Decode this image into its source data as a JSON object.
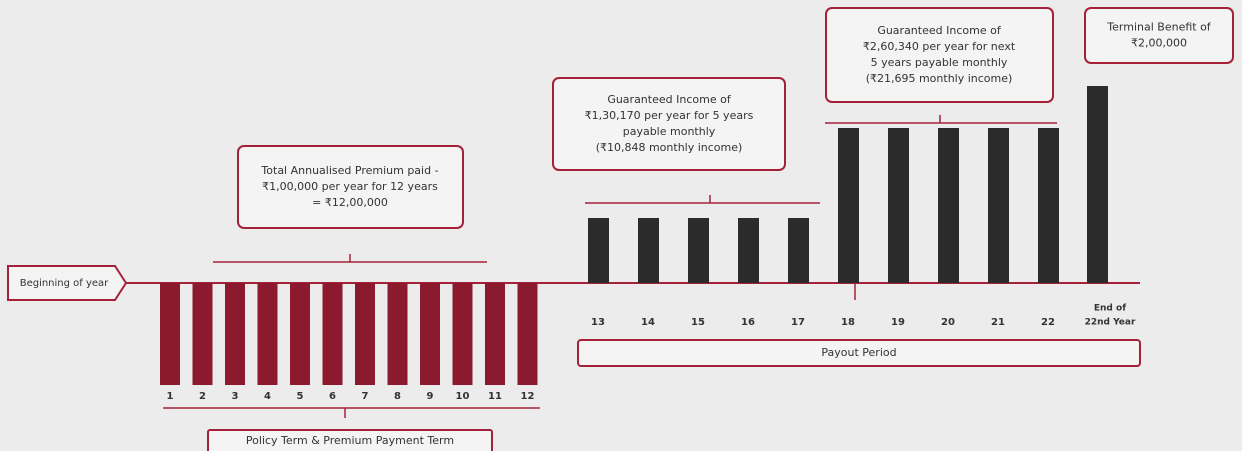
{
  "start_label": "Beginning of year",
  "premium": {
    "years": [
      "1",
      "2",
      "3",
      "4",
      "5",
      "6",
      "7",
      "8",
      "9",
      "10",
      "11",
      "12"
    ],
    "note": [
      "Total Annualised Premium paid -",
      "₹1,00,000 per year for 12 years",
      "= ₹12,00,000"
    ],
    "term_label": "Policy Term & Premium Payment Term"
  },
  "income_1": {
    "years": [
      "13",
      "14",
      "15",
      "16",
      "17"
    ],
    "note": [
      "Guaranteed Income of",
      "₹1,30,170 per year for 5 years",
      "payable monthly",
      "(₹10,848 monthly income)"
    ]
  },
  "income_2": {
    "years": [
      "18",
      "19",
      "20",
      "21",
      "22"
    ],
    "note": [
      "Guaranteed Income of",
      "₹2,60,340 per year for next",
      "5 years payable monthly",
      "(₹21,695 monthly income)"
    ]
  },
  "terminal": {
    "year": [
      "End of",
      "22nd Year"
    ],
    "note": [
      "Terminal Benefit of",
      "₹2,00,000"
    ]
  },
  "payout_label": "Payout Period"
}
